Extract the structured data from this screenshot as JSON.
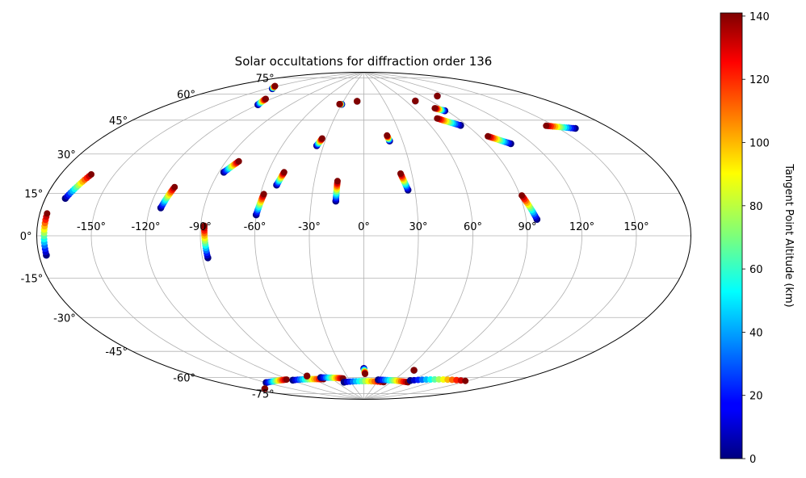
{
  "chart_data": {
    "type": "scatter",
    "projection": "aitoff",
    "title": "Solar occultations for diffraction order 136",
    "xlabel": "",
    "ylabel": "",
    "grid": true,
    "lon_ticks": [
      -150,
      -120,
      -90,
      -60,
      -30,
      0,
      30,
      60,
      90,
      120,
      150
    ],
    "lon_tick_labels": [
      "-150°",
      "-120°",
      "-90°",
      "-60°",
      "-30°",
      "0°",
      "30°",
      "60°",
      "90°",
      "120°",
      "150°"
    ],
    "lat_ticks": [
      -75,
      -60,
      -45,
      -30,
      -15,
      0,
      15,
      30,
      45,
      60,
      75
    ],
    "lat_tick_labels": [
      "-75°",
      "-60°",
      "-45°",
      "-30°",
      "-15°",
      "0°",
      "15°",
      "30°",
      "45°",
      "60°",
      "75°"
    ],
    "colorbar": {
      "label": "Tangent Point Altitude (km)",
      "colormap": "jet",
      "vmin": 0,
      "vmax": 141,
      "ticks": [
        0,
        20,
        40,
        60,
        80,
        100,
        120,
        140
      ],
      "tick_labels": [
        "0",
        "20",
        "40",
        "60",
        "80",
        "100",
        "120",
        "140"
      ]
    },
    "marker_edge_color": "#000080",
    "tracks": [
      {
        "lon": [
          -176,
          -176
        ],
        "lat": [
          -7,
          8
        ]
      },
      {
        "lon": [
          -169,
          -163
        ],
        "lat": [
          14,
          24
        ]
      },
      {
        "lon": [
          -114,
          -111
        ],
        "lat": [
          13,
          23
        ]
      },
      {
        "lon": [
          -87,
          -88
        ],
        "lat": [
          -11,
          5
        ]
      },
      {
        "lon": [
          -87,
          -82
        ],
        "lat": [
          32,
          38
        ]
      },
      {
        "lon": [
          -60,
          -58
        ],
        "lat": [
          11,
          22
        ]
      },
      {
        "lon": [
          -52,
          -50
        ],
        "lat": [
          27,
          34
        ]
      },
      {
        "lon": [
          -16,
          -16
        ],
        "lat": [
          19,
          30
        ]
      },
      {
        "lon": [
          -35,
          -33
        ],
        "lat": [
          49,
          53
        ]
      },
      {
        "lon": [
          26,
          23
        ],
        "lat": [
          25,
          34
        ]
      },
      {
        "lon": [
          20,
          19
        ],
        "lat": [
          52,
          55
        ]
      },
      {
        "lon": [
          96,
          91
        ],
        "lat": [
          8,
          20
        ]
      },
      {
        "lon": [
          106,
          96
        ],
        "lat": [
          45,
          50
        ]
      },
      {
        "lon": [
          160,
          145
        ],
        "lat": [
          45,
          49
        ]
      },
      {
        "lon": [
          85,
          72
        ],
        "lat": [
          57,
          62
        ]
      },
      {
        "lon": [
          88,
          82
        ],
        "lat": [
          65,
          67
        ]
      },
      {
        "lon": [
          -120,
          -125
        ],
        "lat": [
          65,
          68
        ]
      },
      {
        "lon": [
          -146,
          -152
        ],
        "lat": [
          72,
          73
        ]
      },
      {
        "lon": [
          -30,
          -33
        ],
        "lat": [
          72,
          72
        ]
      },
      {
        "lon": [
          -10,
          -10
        ],
        "lat": [
          74,
          74
        ]
      },
      {
        "lon": [
          72,
          72
        ],
        "lat": [
          72,
          72
        ]
      },
      {
        "lon": [
          108,
          108
        ],
        "lat": [
          72,
          72
        ]
      },
      {
        "lon": [
          -150,
          -123
        ],
        "lat": [
          -71,
          -73
        ]
      },
      {
        "lon": [
          -118,
          -75
        ],
        "lat": [
          -74,
          -77
        ]
      },
      {
        "lon": [
          -75,
          -40
        ],
        "lat": [
          -76,
          -78
        ]
      },
      {
        "lon": [
          -45,
          45
        ],
        "lat": [
          -80,
          -80
        ]
      },
      {
        "lon": [
          30,
          90
        ],
        "lat": [
          -79,
          -78
        ]
      },
      {
        "lon": [
          88,
          148
        ],
        "lat": [
          -77,
          -70
        ]
      },
      {
        "lon": [
          0,
          2
        ],
        "lat": [
          -73,
          -76
        ]
      },
      {
        "lon": [
          70,
          70
        ],
        "lat": [
          -72,
          -72
        ]
      },
      {
        "lon": [
          -170,
          -170
        ],
        "lat": [
          -72,
          -72
        ]
      },
      {
        "lon": [
          -90,
          -90
        ],
        "lat": [
          -74,
          -74
        ]
      }
    ]
  }
}
